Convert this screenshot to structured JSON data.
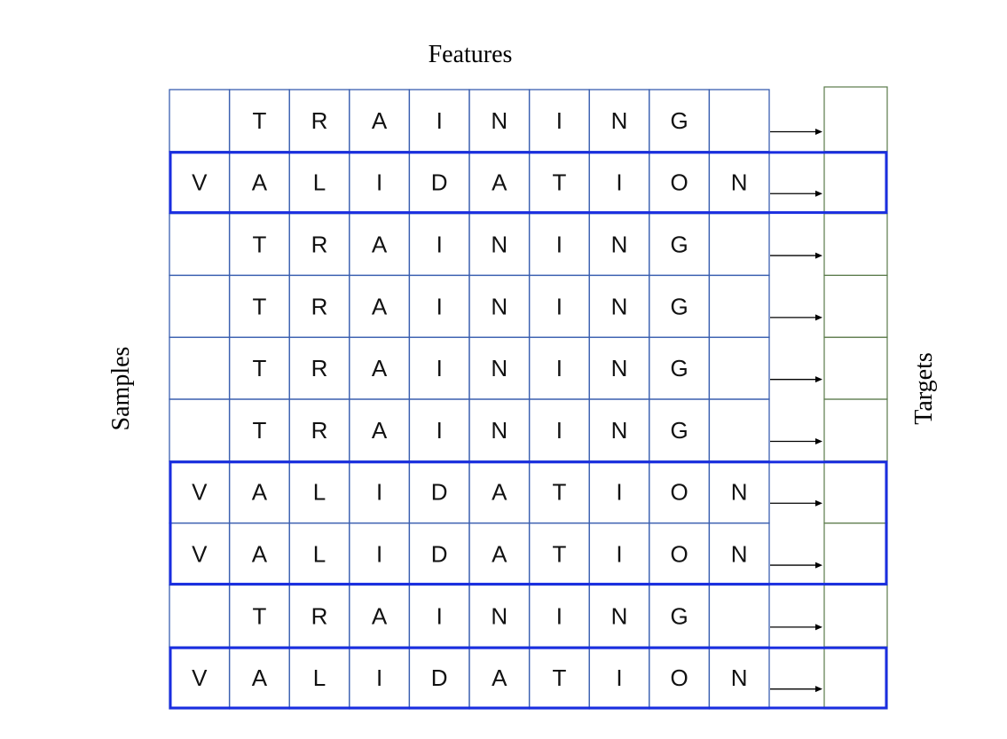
{
  "labels": {
    "features": "Features",
    "samples": "Samples",
    "targets": "Targets"
  },
  "rows": [
    {
      "kind": "training",
      "cells": [
        "",
        "T",
        "R",
        "A",
        "I",
        "N",
        "I",
        "N",
        "G",
        ""
      ]
    },
    {
      "kind": "validation",
      "cells": [
        "V",
        "A",
        "L",
        "I",
        "D",
        "A",
        "T",
        "I",
        "O",
        "N"
      ]
    },
    {
      "kind": "training",
      "cells": [
        "",
        "T",
        "R",
        "A",
        "I",
        "N",
        "I",
        "N",
        "G",
        ""
      ]
    },
    {
      "kind": "training",
      "cells": [
        "",
        "T",
        "R",
        "A",
        "I",
        "N",
        "I",
        "N",
        "G",
        ""
      ]
    },
    {
      "kind": "training",
      "cells": [
        "",
        "T",
        "R",
        "A",
        "I",
        "N",
        "I",
        "N",
        "G",
        ""
      ]
    },
    {
      "kind": "training",
      "cells": [
        "",
        "T",
        "R",
        "A",
        "I",
        "N",
        "I",
        "N",
        "G",
        ""
      ]
    },
    {
      "kind": "validation",
      "cells": [
        "V",
        "A",
        "L",
        "I",
        "D",
        "A",
        "T",
        "I",
        "O",
        "N"
      ]
    },
    {
      "kind": "validation",
      "cells": [
        "V",
        "A",
        "L",
        "I",
        "D",
        "A",
        "T",
        "I",
        "O",
        "N"
      ]
    },
    {
      "kind": "training",
      "cells": [
        "",
        "T",
        "R",
        "A",
        "I",
        "N",
        "I",
        "N",
        "G",
        ""
      ]
    },
    {
      "kind": "validation",
      "cells": [
        "V",
        "A",
        "L",
        "I",
        "D",
        "A",
        "T",
        "I",
        "O",
        "N"
      ]
    }
  ],
  "colors": {
    "grid": "#3a5fb0",
    "validation_outline": "#1a2ee0",
    "targets": "#5a7a4a",
    "arrow": "#000000",
    "text": "#111111"
  }
}
